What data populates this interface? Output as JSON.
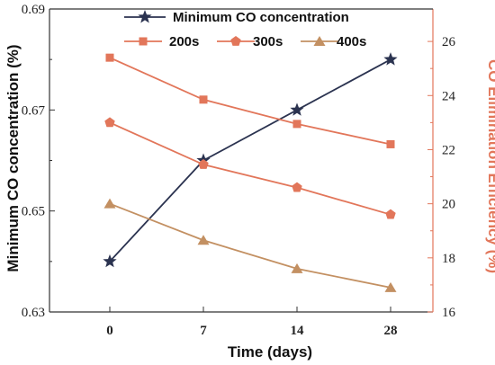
{
  "chart_data": {
    "type": "line",
    "categories": [
      "0",
      "7",
      "14",
      "28"
    ],
    "xlabel": "Time (days)",
    "ylabel_left": "Minimum CO concentration (%)",
    "ylabel_right": "CO Elimination Efficiency (%)",
    "ylim_left": [
      0.63,
      0.69
    ],
    "yticks_left": [
      "0.63",
      "0.65",
      "0.67",
      "0.69"
    ],
    "ylim_right": [
      16,
      27.2
    ],
    "yticks_right": [
      "16",
      "18",
      "20",
      "22",
      "24",
      "26"
    ],
    "grid": false,
    "legend_placement": "top",
    "series": [
      {
        "name": "Minimum CO concentration",
        "axis": "left",
        "marker": "star",
        "color": "#2b3350",
        "values": [
          0.64,
          0.66,
          0.67,
          0.68
        ]
      },
      {
        "name": "200s",
        "axis": "right",
        "marker": "square",
        "color": "#e2765a",
        "values": [
          25.4,
          23.85,
          22.95,
          22.2
        ]
      },
      {
        "name": "300s",
        "axis": "right",
        "marker": "pentagon",
        "color": "#e2765a",
        "values": [
          23.0,
          21.45,
          20.6,
          19.6
        ]
      },
      {
        "name": "400s",
        "axis": "right",
        "marker": "triangle",
        "color": "#c39062",
        "values": [
          20.0,
          18.65,
          17.6,
          16.9
        ]
      }
    ]
  }
}
